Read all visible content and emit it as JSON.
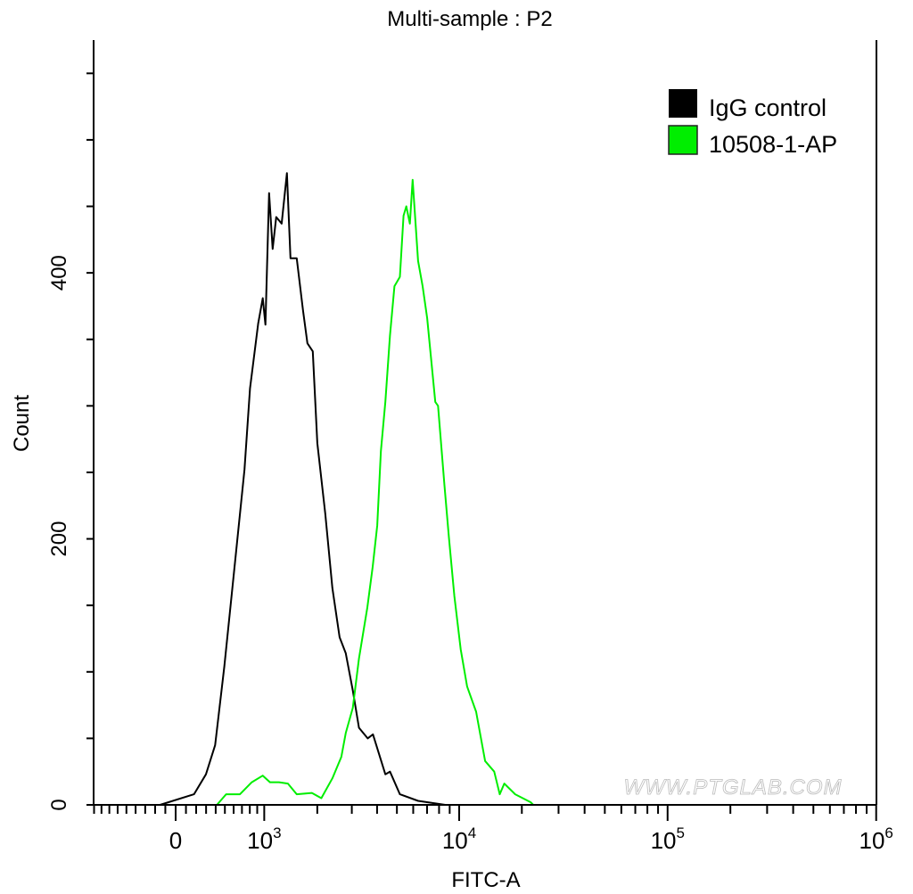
{
  "chart_data": {
    "type": "line",
    "title": "Multi-sample : P2",
    "xlabel": "FITC-A",
    "ylabel": "Count",
    "x_scale": "biexponential",
    "xlim": [
      -920,
      1000000
    ],
    "ylim": [
      0,
      575
    ],
    "x_ticks": [
      {
        "value": 0,
        "base": "0",
        "exp": ""
      },
      {
        "value": 1000,
        "base": "10",
        "exp": "3"
      },
      {
        "value": 10000,
        "base": "10",
        "exp": "4"
      },
      {
        "value": 100000,
        "base": "10",
        "exp": "5"
      },
      {
        "value": 1000000,
        "base": "10",
        "exp": "6"
      }
    ],
    "y_ticks": [
      {
        "value": 0,
        "label": "0"
      },
      {
        "value": 200,
        "label": "200"
      },
      {
        "value": 400,
        "label": "400"
      }
    ],
    "grid": false,
    "legend_placement": "top-right",
    "watermark": "WWW.PTGLAB.COM",
    "series": [
      {
        "name": "IgG control",
        "color": "#000000",
        "points": [
          [
            -152,
            0
          ],
          [
            179,
            8
          ],
          [
            299,
            23
          ],
          [
            394,
            45
          ],
          [
            494,
            104
          ],
          [
            630,
            191
          ],
          [
            732,
            252
          ],
          [
            803,
            313
          ],
          [
            914,
            362
          ],
          [
            978,
            381
          ],
          [
            1018,
            361
          ],
          [
            1072,
            460
          ],
          [
            1128,
            418
          ],
          [
            1185,
            442
          ],
          [
            1275,
            437
          ],
          [
            1368,
            475
          ],
          [
            1433,
            411
          ],
          [
            1552,
            411
          ],
          [
            1678,
            372
          ],
          [
            1774,
            347
          ],
          [
            1893,
            341
          ],
          [
            2000,
            272
          ],
          [
            2201,
            219
          ],
          [
            2395,
            163
          ],
          [
            2604,
            126
          ],
          [
            2799,
            114
          ],
          [
            3035,
            86
          ],
          [
            3256,
            58
          ],
          [
            3596,
            50
          ],
          [
            3818,
            53
          ],
          [
            4391,
            23
          ],
          [
            4626,
            25
          ],
          [
            5170,
            8
          ],
          [
            6336,
            3
          ],
          [
            8572,
            0
          ]
        ]
      },
      {
        "name": "10508-1-AP",
        "color": "#00ee00",
        "points": [
          [
            413,
            0
          ],
          [
            514,
            8
          ],
          [
            675,
            8
          ],
          [
            826,
            17
          ],
          [
            978,
            22
          ],
          [
            1086,
            17
          ],
          [
            1230,
            17
          ],
          [
            1385,
            16
          ],
          [
            1552,
            8
          ],
          [
            1874,
            9
          ],
          [
            2099,
            5
          ],
          [
            2395,
            20
          ],
          [
            2656,
            36
          ],
          [
            2799,
            54
          ],
          [
            3035,
            73
          ],
          [
            3256,
            110
          ],
          [
            3578,
            148
          ],
          [
            3806,
            179
          ],
          [
            4006,
            210
          ],
          [
            4175,
            266
          ],
          [
            4391,
            303
          ],
          [
            4626,
            353
          ],
          [
            4865,
            390
          ],
          [
            5170,
            397
          ],
          [
            5384,
            443
          ],
          [
            5552,
            450
          ],
          [
            5782,
            437
          ],
          [
            5960,
            470
          ],
          [
            6336,
            409
          ],
          [
            6661,
            390
          ],
          [
            7009,
            366
          ],
          [
            7673,
            303
          ],
          [
            7910,
            300
          ],
          [
            8483,
            241
          ],
          [
            8924,
            201
          ],
          [
            9476,
            157
          ],
          [
            10167,
            117
          ],
          [
            10922,
            89
          ],
          [
            12068,
            70
          ],
          [
            13330,
            33
          ],
          [
            14740,
            25
          ],
          [
            15670,
            8
          ],
          [
            16470,
            16
          ],
          [
            18570,
            8
          ],
          [
            22020,
            2
          ],
          [
            22690,
            0
          ]
        ]
      }
    ]
  }
}
